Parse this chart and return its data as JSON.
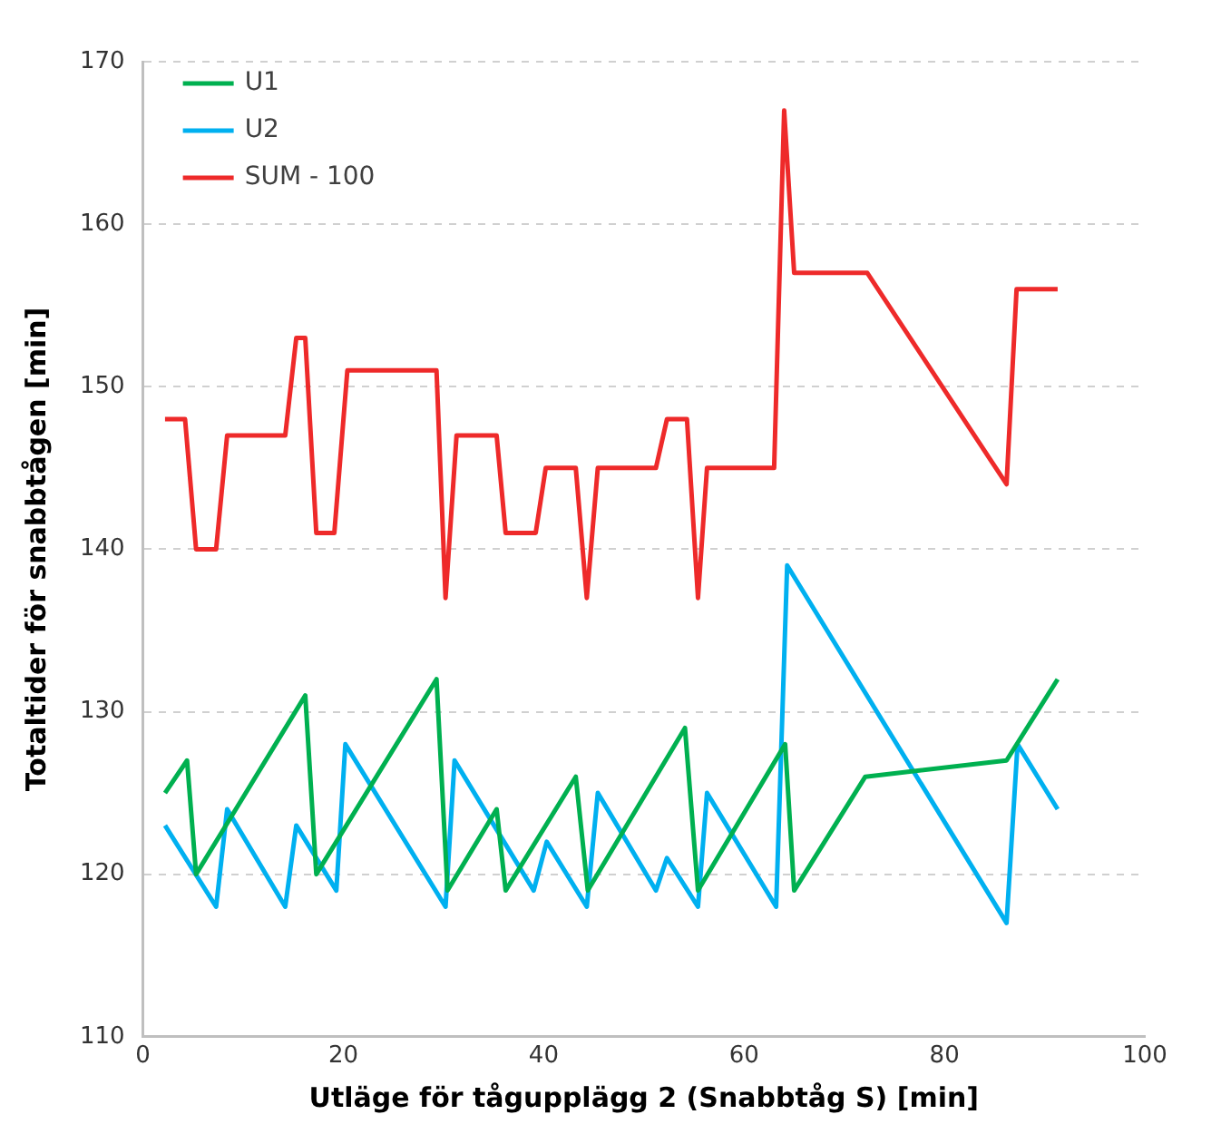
{
  "chart_data": {
    "type": "line",
    "xlabel": "Utläge för tågupplägg 2 (Snabbtåg S) [min]",
    "ylabel": "Totaltider för snabbtågen [min]",
    "xlim": [
      0,
      100
    ],
    "xticks": [
      0,
      20,
      40,
      60,
      80,
      100
    ],
    "ylim": [
      110,
      170
    ],
    "yticks": [
      110,
      120,
      130,
      140,
      150,
      160,
      170
    ],
    "grid": "y",
    "legend": "top left",
    "marker": "none",
    "line_style": "solid",
    "series": [
      {
        "name": "U1",
        "color": "#00b050",
        "x": [
          2.2,
          4.4,
          5.3,
          16.2,
          17.3,
          29.3,
          30.4,
          35.3,
          36.2,
          43.2,
          44.4,
          54.1,
          55.4,
          64.1,
          65,
          72.1,
          86.2,
          91.3
        ],
        "values": [
          125,
          127,
          120,
          131,
          120,
          132,
          119,
          124,
          119,
          126,
          119,
          129,
          119,
          128,
          119,
          126,
          127,
          132
        ]
      },
      {
        "name": "U2",
        "color": "#00b0f0",
        "x": [
          2.2,
          7.3,
          8.4,
          14.2,
          15.3,
          19.3,
          20.2,
          30.2,
          31.1,
          39,
          40.3,
          44.3,
          45.4,
          51.2,
          52.3,
          55.4,
          56.3,
          63.2,
          64.3,
          86.2,
          87.3,
          91.3
        ],
        "values": [
          123,
          118,
          124,
          118,
          123,
          119,
          128,
          118,
          127,
          119,
          122,
          118,
          125,
          119,
          121,
          118,
          125,
          118,
          139,
          117,
          128,
          124
        ]
      },
      {
        "name": "SUM - 100",
        "color": "#ee2a2a",
        "x": [
          2.2,
          4.2,
          5.3,
          7.3,
          8.4,
          14.2,
          15.3,
          16.2,
          17.3,
          19.1,
          20.4,
          29.3,
          30.2,
          31.3,
          35.3,
          36.2,
          39.2,
          40.2,
          43.2,
          44.3,
          45.4,
          51.2,
          52.3,
          54.3,
          55.4,
          56.3,
          63,
          64,
          65,
          72.3,
          86.2,
          87.2,
          91.3
        ],
        "values": [
          148,
          148,
          140,
          140,
          147,
          147,
          153,
          153,
          141,
          141,
          151,
          151,
          137,
          147,
          147,
          141,
          141,
          145,
          145,
          137,
          145,
          145,
          148,
          148,
          137,
          145,
          145,
          167,
          157,
          157,
          144,
          156,
          156
        ]
      }
    ]
  }
}
